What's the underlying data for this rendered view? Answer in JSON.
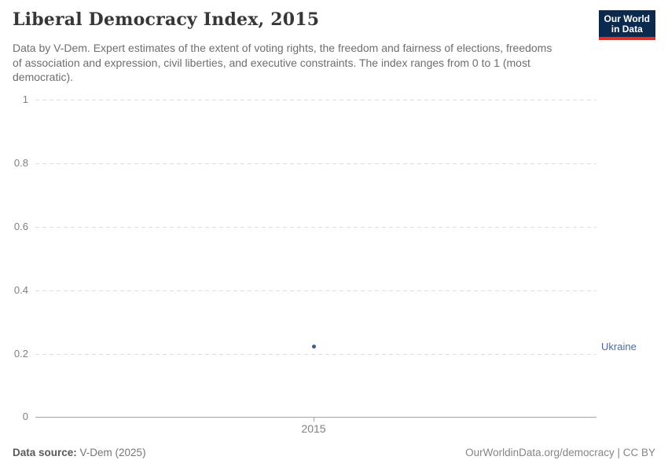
{
  "header": {
    "title": "Liberal Democracy Index, 2015",
    "subtitle_lines": {
      "l1": "Data by V-Dem. Expert estimates of the extent of voting rights, the freedom and fairness of elections, freedoms",
      "l2": "of association and expression, civil liberties, and executive constraints. The index ranges from 0 to 1 (most",
      "l3": "democratic)."
    }
  },
  "logo": {
    "line1": "Our World",
    "line2": "in Data",
    "bg_color": "#0c2a4d",
    "bar_color": "#d7342f"
  },
  "chart": {
    "yticks": {
      "t1": "1",
      "t08": "0.8",
      "t06": "0.6",
      "t04": "0.4",
      "t02": "0.2",
      "t0": "0"
    },
    "xtick": "2015",
    "entity_label": "Ukraine",
    "point_color": "#3d5a96",
    "entity_label_color": "#4c6a9c"
  },
  "chart_data": {
    "type": "scatter",
    "title": "Liberal Democracy Index, 2015",
    "subtitle": "Data by V-Dem. Expert estimates of the extent of voting rights, the freedom and fairness of elections, freedoms of association and expression, civil liberties, and executive constraints. The index ranges from 0 to 1 (most democratic).",
    "series": [
      {
        "name": "Ukraine",
        "x": [
          2015
        ],
        "values": [
          0.22
        ]
      }
    ],
    "xlabel": "",
    "ylabel": "",
    "x_tick_labels": [
      "2015"
    ],
    "y_tick_labels": [
      "0",
      "0.2",
      "0.4",
      "0.6",
      "0.8",
      "1"
    ],
    "ylim": [
      0,
      1
    ],
    "grid": true,
    "grid_style": "dashed",
    "legend_position": "right-of-point"
  },
  "footer": {
    "source_label": "Data source:",
    "source_value": " V-Dem (2025)",
    "credit": "OurWorldinData.org/democracy | CC BY"
  }
}
